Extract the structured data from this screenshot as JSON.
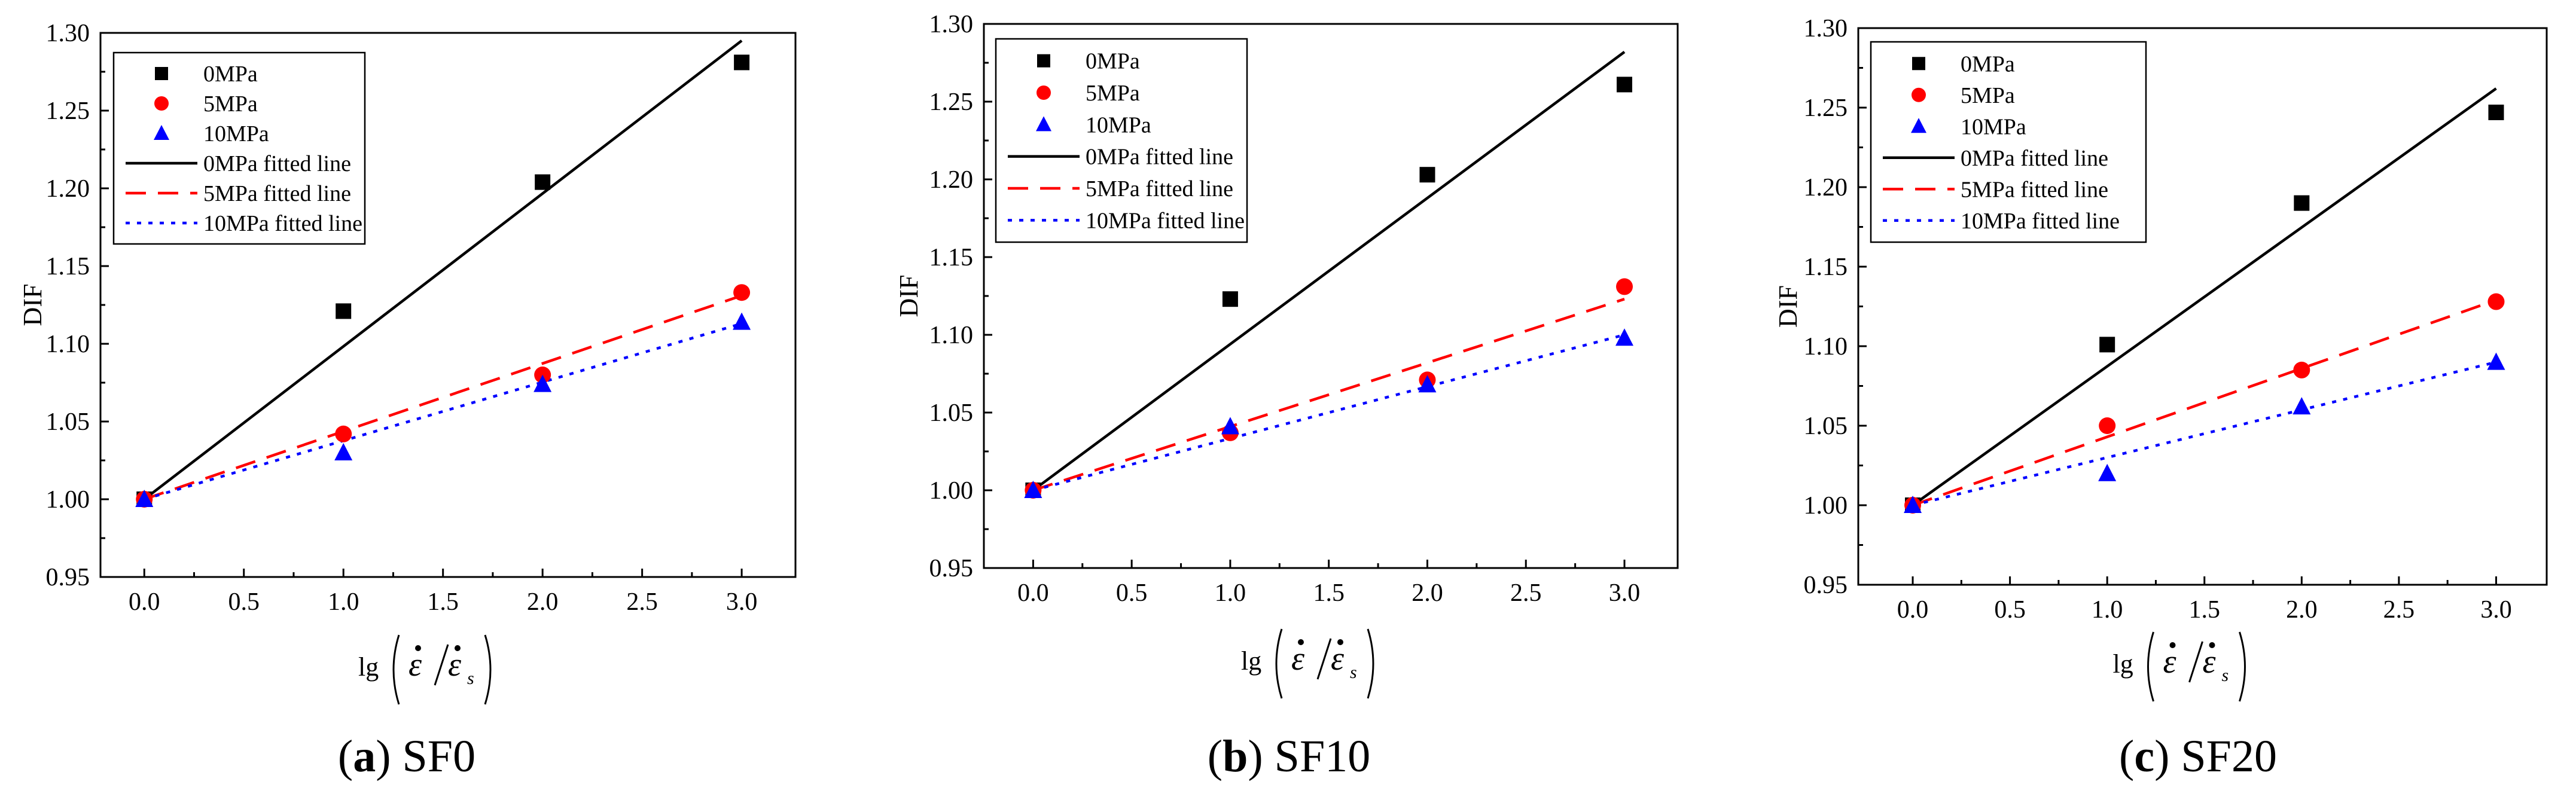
{
  "chart_data": [
    {
      "type": "scatter",
      "caption": {
        "open": "(",
        "letter": "a",
        "close": ")",
        "name": "SF0"
      },
      "xlabel": {
        "lg": "lg",
        "eps": "ε",
        "sub": "s"
      },
      "ylabel": "DIF",
      "xlim": [
        -0.22,
        3.27
      ],
      "ylim": [
        0.95,
        1.3
      ],
      "xticks": [
        "0.0",
        "0.5",
        "1.0",
        "1.5",
        "2.0",
        "2.5",
        "3.0"
      ],
      "yticks": [
        "0.95",
        "1.00",
        "1.05",
        "1.10",
        "1.15",
        "1.20",
        "1.25",
        "1.30"
      ],
      "series": [
        {
          "name": "0MPa",
          "marker": "square",
          "color": "#000000",
          "x": [
            0,
            1,
            2,
            3
          ],
          "y": [
            1.0,
            1.121,
            1.204,
            1.281
          ]
        },
        {
          "name": "5MPa",
          "marker": "circle",
          "color": "#ff0000",
          "x": [
            0,
            1,
            2,
            3
          ],
          "y": [
            1.0,
            1.042,
            1.08,
            1.133
          ]
        },
        {
          "name": "10MPa",
          "marker": "triangle",
          "color": "#0000ff",
          "x": [
            0,
            1,
            2,
            3
          ],
          "y": [
            1.0,
            1.03,
            1.074,
            1.114
          ]
        }
      ],
      "fits": [
        {
          "name": "0MPa fitted line",
          "style": "solid",
          "color": "#000000",
          "x": [
            0,
            3
          ],
          "y": [
            1.0,
            1.295
          ]
        },
        {
          "name": "5MPa fitted line",
          "style": "dashed",
          "color": "#ff0000",
          "x": [
            0,
            3
          ],
          "y": [
            1.0,
            1.131
          ]
        },
        {
          "name": "10MPa fitted line",
          "style": "dotted",
          "color": "#0000ff",
          "x": [
            0,
            3
          ],
          "y": [
            1.0,
            1.113
          ]
        }
      ]
    },
    {
      "type": "scatter",
      "caption": {
        "open": "(",
        "letter": "b",
        "close": ")",
        "name": "SF10"
      },
      "xlabel": {
        "lg": "lg",
        "eps": "ε",
        "sub": "s"
      },
      "ylabel": "DIF",
      "xlim": [
        -0.25,
        3.27
      ],
      "ylim": [
        0.95,
        1.3
      ],
      "xticks": [
        "0.0",
        "0.5",
        "1.0",
        "1.5",
        "2.0",
        "2.5",
        "3.0"
      ],
      "yticks": [
        "0.95",
        "1.00",
        "1.05",
        "1.10",
        "1.15",
        "1.20",
        "1.25",
        "1.30"
      ],
      "series": [
        {
          "name": "0MPa",
          "marker": "square",
          "color": "#000000",
          "x": [
            0,
            1,
            2,
            3
          ],
          "y": [
            1.0,
            1.123,
            1.203,
            1.261
          ]
        },
        {
          "name": "5MPa",
          "marker": "circle",
          "color": "#ff0000",
          "x": [
            0,
            1,
            2,
            3
          ],
          "y": [
            1.0,
            1.037,
            1.071,
            1.131
          ]
        },
        {
          "name": "10MPa",
          "marker": "triangle",
          "color": "#0000ff",
          "x": [
            0,
            1,
            2,
            3
          ],
          "y": [
            1.0,
            1.041,
            1.068,
            1.098
          ]
        }
      ],
      "fits": [
        {
          "name": "0MPa fitted line",
          "style": "solid",
          "color": "#000000",
          "x": [
            0,
            3
          ],
          "y": [
            1.0,
            1.282
          ]
        },
        {
          "name": "5MPa fitted line",
          "style": "dashed",
          "color": "#ff0000",
          "x": [
            0,
            3
          ],
          "y": [
            1.0,
            1.123
          ]
        },
        {
          "name": "10MPa fitted line",
          "style": "dotted",
          "color": "#0000ff",
          "x": [
            0,
            3
          ],
          "y": [
            1.0,
            1.1
          ]
        }
      ]
    },
    {
      "type": "scatter",
      "caption": {
        "open": "(",
        "letter": "c",
        "close": ")",
        "name": "SF20"
      },
      "xlabel": {
        "lg": "lg",
        "eps": "ε",
        "sub": "s"
      },
      "ylabel": "DIF",
      "xlim": [
        -0.28,
        3.26
      ],
      "ylim": [
        0.95,
        1.3
      ],
      "xticks": [
        "0.0",
        "0.5",
        "1.0",
        "1.5",
        "2.0",
        "2.5",
        "3.0"
      ],
      "yticks": [
        "0.95",
        "1.00",
        "1.05",
        "1.10",
        "1.15",
        "1.20",
        "1.25",
        "1.30"
      ],
      "series": [
        {
          "name": "0MPa",
          "marker": "square",
          "color": "#000000",
          "x": [
            0,
            1,
            2,
            3
          ],
          "y": [
            1.0,
            1.101,
            1.19,
            1.247
          ]
        },
        {
          "name": "5MPa",
          "marker": "circle",
          "color": "#ff0000",
          "x": [
            0,
            1,
            2,
            3
          ],
          "y": [
            1.0,
            1.05,
            1.085,
            1.128
          ]
        },
        {
          "name": "10MPa",
          "marker": "triangle",
          "color": "#0000ff",
          "x": [
            0,
            1,
            2,
            3
          ],
          "y": [
            1.0,
            1.02,
            1.062,
            1.09
          ]
        }
      ],
      "fits": [
        {
          "name": "0MPa fitted line",
          "style": "solid",
          "color": "#000000",
          "x": [
            0,
            3
          ],
          "y": [
            1.0,
            1.262
          ]
        },
        {
          "name": "5MPa fitted line",
          "style": "dashed",
          "color": "#ff0000",
          "x": [
            0,
            3
          ],
          "y": [
            1.0,
            1.129
          ]
        },
        {
          "name": "10MPa fitted line",
          "style": "dotted",
          "color": "#0000ff",
          "x": [
            0,
            3
          ],
          "y": [
            1.0,
            1.09
          ]
        }
      ]
    }
  ]
}
